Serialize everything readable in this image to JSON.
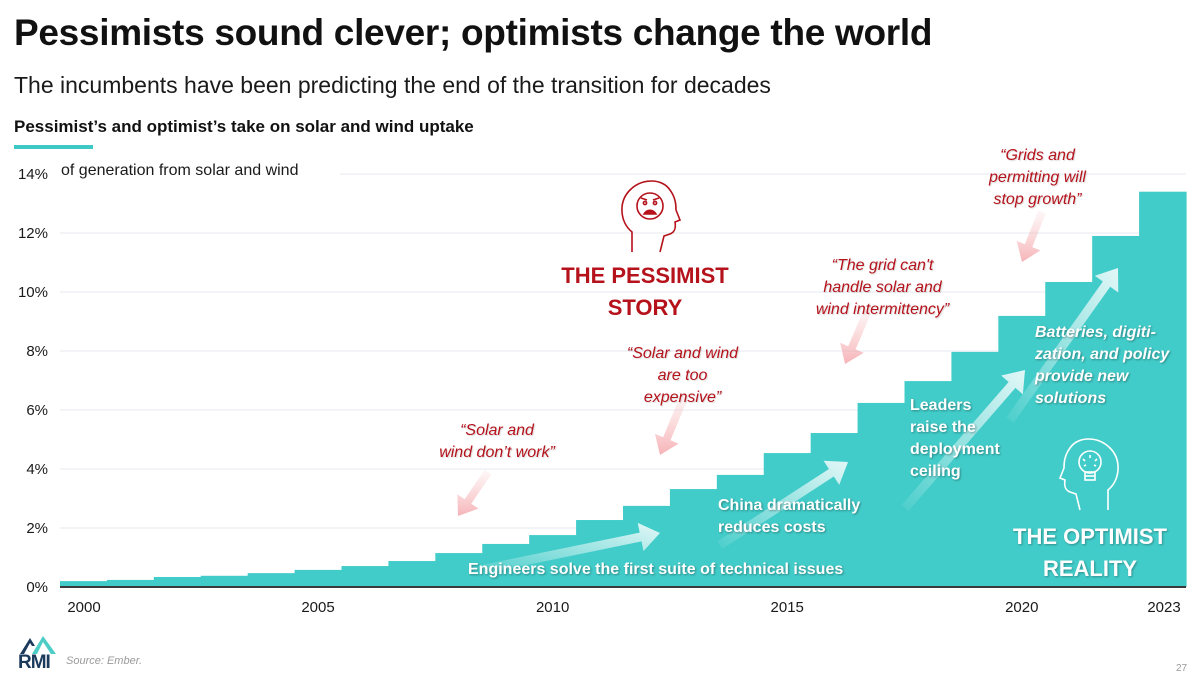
{
  "header": {
    "title": "Pessimists sound clever; optimists change the world",
    "subtitle": "The incumbents have been predicting the end of the transition for decades",
    "chart_heading": "Pessimist’s and optimist’s take on solar and wind uptake"
  },
  "colors": {
    "bars": "#42ccc9",
    "pessimist_red": "#b5121b",
    "accent_teal": "#3ec9c6",
    "gridline": "#e6e8f0",
    "logo_dark": "#1b3a5c"
  },
  "chart_data": {
    "type": "bar",
    "title": "Pessimist’s and optimist’s take on solar and wind uptake",
    "ylabel": "of generation from solar and wind",
    "xlabel": "",
    "ylim": [
      0,
      14
    ],
    "yticks": [
      "0%",
      "2%",
      "4%",
      "6%",
      "8%",
      "10%",
      "12%",
      "14%"
    ],
    "ytick_values": [
      0,
      2,
      4,
      6,
      8,
      10,
      12,
      14
    ],
    "xtick_labels": [
      "2000",
      "2005",
      "2010",
      "2015",
      "2020",
      "2023"
    ],
    "grid": true,
    "categories": [
      "2000",
      "2001",
      "2002",
      "2003",
      "2004",
      "2005",
      "2006",
      "2007",
      "2008",
      "2009",
      "2010",
      "2011",
      "2012",
      "2013",
      "2014",
      "2015",
      "2016",
      "2017",
      "2018",
      "2019",
      "2020",
      "2021",
      "2022",
      "2023"
    ],
    "values": [
      0.2,
      0.24,
      0.34,
      0.38,
      0.47,
      0.58,
      0.71,
      0.88,
      1.15,
      1.46,
      1.76,
      2.27,
      2.75,
      3.32,
      3.8,
      4.54,
      5.22,
      6.24,
      6.98,
      7.97,
      9.19,
      10.34,
      11.9,
      13.4
    ],
    "unit": "%",
    "annotations": {
      "pessimist": [
        {
          "text_lines": [
            "“Solar and",
            "wind don’t work”"
          ],
          "year": "2008"
        },
        {
          "text_lines": [
            "“Solar and wind",
            "are too",
            "expensive”"
          ],
          "year": "2012"
        },
        {
          "text_lines": [
            "“The grid can't",
            "handle solar and",
            "wind intermittency”"
          ],
          "year": "2016"
        },
        {
          "text_lines": [
            "“Grids and",
            "permitting will",
            "stop growth”"
          ],
          "year": "2020"
        }
      ],
      "optimist": [
        {
          "text": "Engineers solve the first suite of technical issues"
        },
        {
          "text_lines": [
            "China dramatically",
            "reduces costs"
          ]
        },
        {
          "text_lines": [
            "Leaders",
            "raise the",
            "deployment",
            "ceiling"
          ]
        },
        {
          "text_lines": [
            "Batteries, digiti-",
            "zation, and policy",
            "provide new",
            "solutions"
          ]
        }
      ],
      "pessimist_story": [
        "THE PESSIMIST",
        "STORY"
      ],
      "optimist_reality": [
        "THE OPTIMIST",
        "REALITY"
      ]
    }
  },
  "footer": {
    "logo_text": "RMI",
    "source": "Source: Ember.",
    "page_number": "27"
  },
  "icons": {
    "pessimist": "angry-head-icon",
    "optimist": "lightbulb-head-icon"
  }
}
